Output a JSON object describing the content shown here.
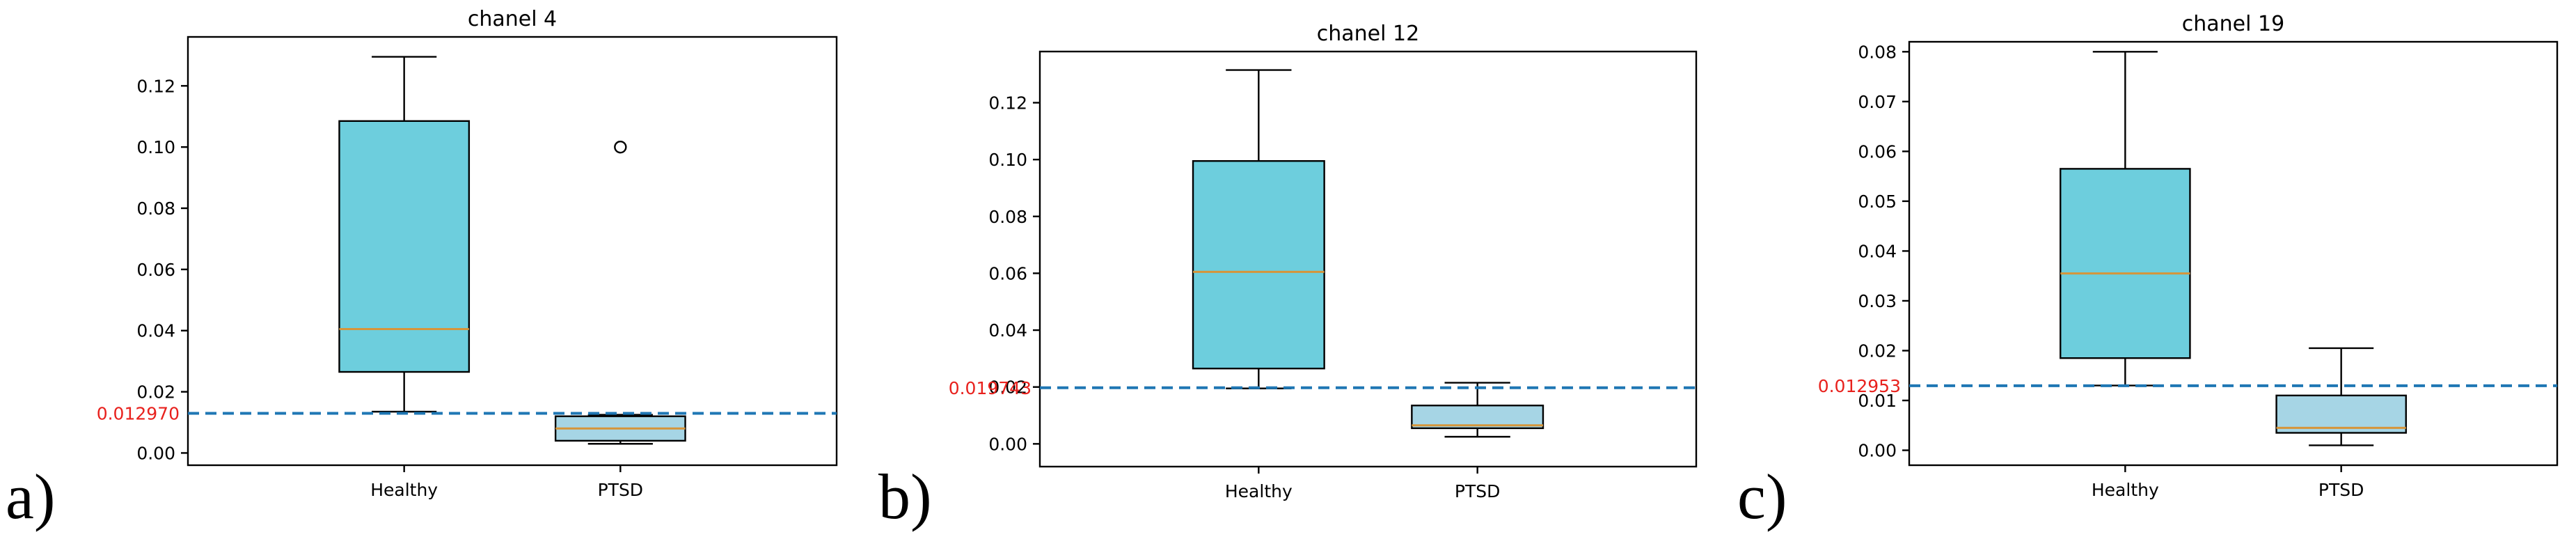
{
  "labels": [
    "a)",
    "b)",
    "c)"
  ],
  "chart_data": [
    {
      "type": "box",
      "title": "chanel 4",
      "categories": [
        "Healthy",
        "PTSD"
      ],
      "ylim": [
        -0.004,
        0.136
      ],
      "yticks": [
        "0.00",
        "0.02",
        "0.04",
        "0.06",
        "0.08",
        "0.10",
        "0.12"
      ],
      "threshold": 0.01297,
      "threshold_label": "0.012970",
      "boxes": [
        {
          "name": "Healthy",
          "whislo": 0.0135,
          "q1": 0.0265,
          "med": 0.0405,
          "q3": 0.1085,
          "whishi": 0.1295,
          "fliers": [],
          "color": "#6dcedd"
        },
        {
          "name": "PTSD",
          "whislo": 0.003,
          "q1": 0.004,
          "med": 0.008,
          "q3": 0.012,
          "whishi": 0.0125,
          "fliers": [
            0.1
          ],
          "color": "#a6d5e5"
        }
      ]
    },
    {
      "type": "box",
      "title": "chanel 12",
      "categories": [
        "Healthy",
        "PTSD"
      ],
      "ylim": [
        -0.008,
        0.138
      ],
      "yticks": [
        "0.00",
        "0.02",
        "0.04",
        "0.06",
        "0.08",
        "0.10",
        "0.12"
      ],
      "threshold": 0.01974,
      "threshold_label": "0.019743",
      "boxes": [
        {
          "name": "Healthy",
          "whislo": 0.0195,
          "q1": 0.0265,
          "med": 0.0605,
          "q3": 0.0995,
          "whishi": 0.1315,
          "fliers": [],
          "color": "#6dcedd"
        },
        {
          "name": "PTSD",
          "whislo": 0.0025,
          "q1": 0.0055,
          "med": 0.0065,
          "q3": 0.0135,
          "whishi": 0.0215,
          "fliers": [],
          "color": "#a6d5e5"
        }
      ]
    },
    {
      "type": "box",
      "title": "chanel 19",
      "categories": [
        "Healthy",
        "PTSD"
      ],
      "ylim": [
        -0.003,
        0.082
      ],
      "yticks": [
        "0.00",
        "0.01",
        "0.02",
        "0.03",
        "0.04",
        "0.05",
        "0.06",
        "0.07",
        "0.08"
      ],
      "threshold": 0.01295,
      "threshold_label": "0.012953",
      "boxes": [
        {
          "name": "Healthy",
          "whislo": 0.013,
          "q1": 0.0185,
          "med": 0.0355,
          "q3": 0.0565,
          "whishi": 0.08,
          "fliers": [],
          "color": "#6dcedd"
        },
        {
          "name": "PTSD",
          "whislo": 0.001,
          "q1": 0.0035,
          "med": 0.0045,
          "q3": 0.011,
          "whishi": 0.0205,
          "fliers": [],
          "color": "#a6d5e5"
        }
      ]
    }
  ]
}
